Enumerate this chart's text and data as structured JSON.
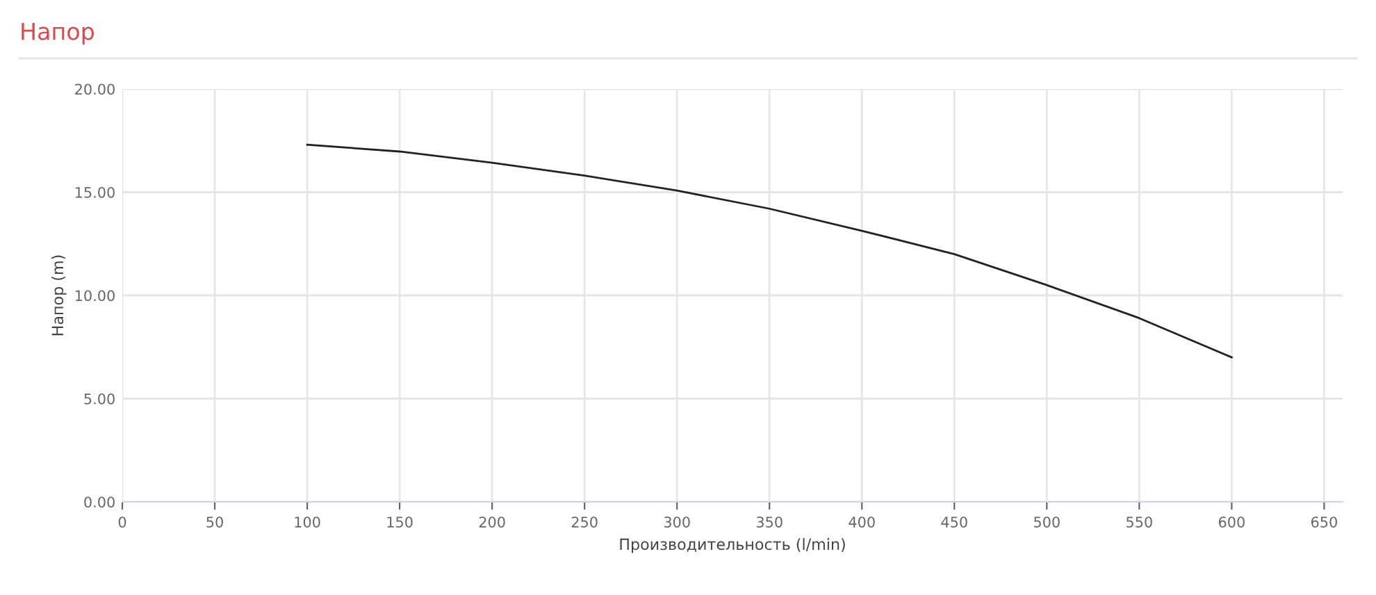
{
  "chart_data": {
    "type": "line",
    "title": "Напор",
    "xlabel": "Производительность (l/min)",
    "ylabel": "Напор (m)",
    "x": [
      100,
      150,
      200,
      250,
      300,
      350,
      400,
      450,
      500,
      550,
      600
    ],
    "series": [
      {
        "color": "#222222",
        "values": [
          17.3,
          16.97,
          16.43,
          15.8,
          15.08,
          14.2,
          13.13,
          12.0,
          10.5,
          8.9,
          7.0
        ]
      }
    ],
    "xlim": [
      0,
      660
    ],
    "xticks": [
      0,
      50,
      100,
      150,
      200,
      250,
      300,
      350,
      400,
      450,
      500,
      550,
      600,
      650
    ],
    "ylim": [
      0,
      20
    ],
    "yticks": [
      {
        "value": 0,
        "label": "0.00"
      },
      {
        "value": 5,
        "label": "5.00"
      },
      {
        "value": 10,
        "label": "10.00"
      },
      {
        "value": 15,
        "label": "15.00"
      },
      {
        "value": 20,
        "label": "20.00"
      }
    ],
    "grid": true,
    "marker": "none",
    "line_style": "solid"
  }
}
